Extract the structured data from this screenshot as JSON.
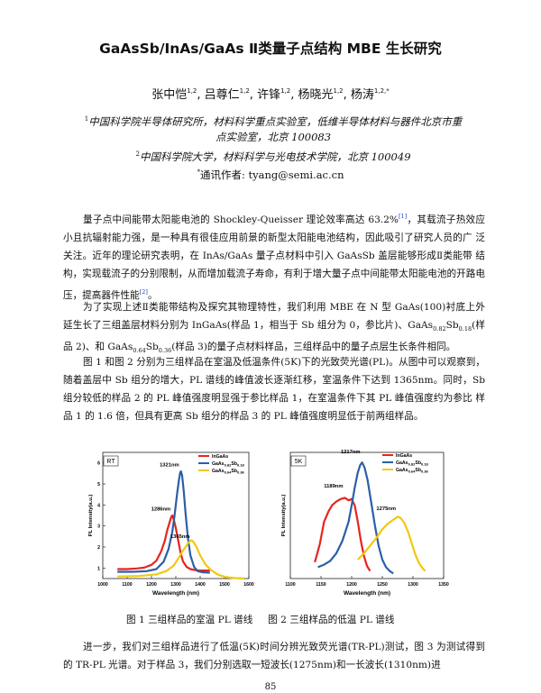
{
  "title": "GaAsSb/InAs/GaAs Ⅱ类量子点结构 MBE 生长研究",
  "authors": [
    {
      "name": "张中恺",
      "sup": "1,2"
    },
    {
      "name": "吕尊仁",
      "sup": "1,2"
    },
    {
      "name": "许锋",
      "sup": "1,2"
    },
    {
      "name": "杨晓光",
      "sup": "1,2"
    },
    {
      "name": "杨涛",
      "sup": "1,2,*"
    }
  ],
  "affiliation1": {
    "sup": "1",
    "line1": "中国科学院半导体研究所，材料科学重点实验室，低维半导体材料与器件北京市重",
    "line2": "点实验室，北京 100083"
  },
  "affiliation2": {
    "sup": "2",
    "text": "中国科学院大学，材料科学与光电技术学院，北京 100049"
  },
  "correspondence": {
    "sup": "*",
    "text": "通讯作者: tyang@semi.ac.cn"
  },
  "paragraph1": {
    "part1": "量子点中间能带太阳能电池的 Shockley-Queisser 理论效率高达 63.2%",
    "ref1": "[1]",
    "part2": "，其载流子热效应 小且抗辐射能力强，是一种具有很佳应用前景的新型太阳能电池结构，因此吸引了研究人员的广 泛关注。近年的理论研究表明，在 InAs/GaAs 量子点材料中引入 GaAsSb 盖层能够形成Ⅱ类能带 结构，实现载流子的分别限制，从而增加载流子寿命，有利于增大量子点中间能带太阳能电池的开路电压，提高器件性能",
    "ref2": "[2]",
    "part3": "。"
  },
  "paragraph2": {
    "part1": "为了实现上述Ⅱ类能带结构及探究其物理特性，我们利用 MBE 在 N 型 GaAs(100)衬底上外 延生长了三组盖层材料分别为 InGaAs(样品 1，相当于 Sb 组分为 0，参比片)、GaAs",
    "sub1": "0.82",
    "part2": "Sb",
    "sub2": "0.18",
    "part3": "(样品 2)、和 GaAs",
    "sub3": "0.64",
    "part4": "Sb",
    "sub4": "0.36",
    "part5": "(样品 3)的量子点材料样品，三组样品中的量子点层生长条件相同。"
  },
  "paragraph3": "图 1 和图 2 分别为三组样品在室温及低温条件(5K)下的光致荧光谱(PL)。从图中可以观察到，随着盖层中 Sb 组分的增大，PL 谱线的峰值波长逐渐红移，室温条件下达到 1365nm。同时，Sb 组分较低的样品 2 的 PL 峰值强度明显强于参比样品 1，在室温条件下其 PL 峰值强度约为参比 样品 1 的 1.6 倍，但具有更高 Sb 组分的样品 3 的 PL 峰值强度明显低于前两组样品。",
  "paragraph4": "进一步，我们对三组样品进行了低温(5K)时间分辨光致荧光谱(TR-PL)测试，图 3 为测试得到的 TR-PL 光谱。对于样品 3，我们分别选取一短波长(1275nm)和一长波长(1310nm)进",
  "captions": {
    "fig1": "图 1 三组样品的室温 PL 谱线",
    "fig2": "图 2 三组样品的低温 PL 谱线"
  },
  "page_number": "85",
  "colors": {
    "InGaAs": "#e8231f",
    "GaAs0.82Sb0.18": "#2a5fa8",
    "GaAs0.64Sb0.36": "#f2c80f"
  },
  "chart_data": [
    {
      "type": "line",
      "panel_label": "RT",
      "xlabel": "Wavelength (nm)",
      "ylabel": "PL Intensity(a.u.)",
      "xlim": [
        1000,
        1600
      ],
      "ylim": [
        0.5,
        6.5
      ],
      "xticks": [
        1000,
        1100,
        1200,
        1300,
        1400,
        1500,
        1600
      ],
      "yticks": [
        1,
        2,
        3,
        4,
        5,
        6
      ],
      "legend": [
        {
          "name": "InGaAs",
          "main": "InGaAs",
          "sub1": "",
          "mid": "",
          "sub2": ""
        },
        {
          "name": "GaAs0.82Sb0.18",
          "main": "GaAs",
          "sub1": "0.82",
          "mid": "Sb",
          "sub2": "0.18"
        },
        {
          "name": "GaAs0.64Sb0.36",
          "main": "GaAs",
          "sub1": "0.64",
          "mid": "Sb",
          "sub2": "0.36"
        }
      ],
      "annotations": [
        {
          "text": "1321nm",
          "x": 1321,
          "y": 5.7
        },
        {
          "text": "1286nm",
          "x": 1286,
          "y": 3.6
        },
        {
          "text": "1365nm",
          "x": 1365,
          "y": 2.3
        }
      ],
      "series": [
        {
          "name": "InGaAs",
          "x": [
            1060,
            1100,
            1140,
            1170,
            1200,
            1220,
            1240,
            1255,
            1265,
            1275,
            1282,
            1286,
            1292,
            1300,
            1310,
            1320,
            1330,
            1345,
            1360,
            1380,
            1400,
            1420,
            1440
          ],
          "y": [
            0.95,
            0.95,
            0.98,
            1.02,
            1.15,
            1.35,
            1.8,
            2.3,
            2.8,
            3.2,
            3.45,
            3.5,
            3.3,
            2.9,
            2.3,
            1.7,
            1.3,
            1.05,
            0.95,
            0.9,
            0.88,
            0.88,
            0.88
          ]
        },
        {
          "name": "GaAs0.82Sb0.18",
          "x": [
            1060,
            1120,
            1180,
            1220,
            1250,
            1270,
            1285,
            1295,
            1305,
            1313,
            1318,
            1321,
            1326,
            1333,
            1340,
            1350,
            1360,
            1375,
            1390,
            1410,
            1440
          ],
          "y": [
            0.82,
            0.82,
            0.85,
            0.95,
            1.3,
            1.9,
            2.7,
            3.5,
            4.5,
            5.2,
            5.55,
            5.6,
            5.4,
            4.6,
            3.6,
            2.4,
            1.6,
            1.05,
            0.85,
            0.8,
            0.78
          ]
        },
        {
          "name": "GaAs0.64Sb0.36",
          "x": [
            1060,
            1150,
            1220,
            1260,
            1290,
            1310,
            1325,
            1340,
            1352,
            1360,
            1365,
            1372,
            1385,
            1400,
            1420,
            1440,
            1470,
            1500,
            1540,
            1580
          ],
          "y": [
            0.6,
            0.62,
            0.7,
            0.85,
            1.1,
            1.45,
            1.75,
            2.0,
            2.2,
            2.3,
            2.32,
            2.25,
            2.0,
            1.6,
            1.2,
            0.95,
            0.7,
            0.58,
            0.52,
            0.5
          ]
        }
      ]
    },
    {
      "type": "line",
      "panel_label": "5K",
      "xlabel": "Wavelength (nm)",
      "ylabel": "PL Intensity(a.u.)",
      "xlim": [
        1100,
        1350
      ],
      "ylim": [
        0,
        1
      ],
      "xticks": [
        1100,
        1150,
        1200,
        1250,
        1300,
        1350
      ],
      "yticks": [],
      "legend": [
        {
          "name": "InGaAs",
          "main": "InGaAs",
          "sub1": "",
          "mid": "",
          "sub2": ""
        },
        {
          "name": "GaAs0.82Sb0.18",
          "main": "GaAs",
          "sub1": "0.82",
          "mid": "Sb",
          "sub2": "0.18"
        },
        {
          "name": "GaAs0.64Sb0.36",
          "main": "GaAs",
          "sub1": "0.64",
          "mid": "Sb",
          "sub2": "0.36"
        }
      ],
      "annotations": [
        {
          "text": "1217nm",
          "x": 1217,
          "y": 0.97
        },
        {
          "text": "1189nm",
          "x": 1189,
          "y": 0.7
        },
        {
          "text": "1275nm",
          "x": 1275,
          "y": 0.52
        }
      ],
      "series": [
        {
          "name": "InGaAs",
          "x": [
            1140,
            1148,
            1155,
            1162,
            1168,
            1175,
            1182,
            1189,
            1195,
            1200,
            1205,
            1210,
            1215,
            1220,
            1225,
            1230
          ],
          "y": [
            0.13,
            0.27,
            0.45,
            0.53,
            0.58,
            0.61,
            0.63,
            0.64,
            0.62,
            0.63,
            0.58,
            0.45,
            0.3,
            0.18,
            0.1,
            0.06
          ]
        },
        {
          "name": "GaAs0.82Sb0.18",
          "x": [
            1145,
            1155,
            1165,
            1175,
            1185,
            1195,
            1200,
            1205,
            1210,
            1214,
            1217,
            1221,
            1226,
            1232,
            1238,
            1244,
            1250,
            1256,
            1262,
            1268
          ],
          "y": [
            0.09,
            0.11,
            0.14,
            0.2,
            0.3,
            0.45,
            0.58,
            0.72,
            0.84,
            0.9,
            0.92,
            0.88,
            0.78,
            0.6,
            0.42,
            0.26,
            0.15,
            0.09,
            0.06,
            0.04
          ]
        },
        {
          "name": "GaAs0.64Sb0.36",
          "x": [
            1210,
            1220,
            1230,
            1240,
            1250,
            1258,
            1266,
            1272,
            1275,
            1280,
            1286,
            1292,
            1298,
            1304,
            1310,
            1316,
            1320
          ],
          "y": [
            0.15,
            0.2,
            0.26,
            0.32,
            0.39,
            0.43,
            0.46,
            0.48,
            0.49,
            0.48,
            0.44,
            0.37,
            0.28,
            0.19,
            0.12,
            0.08,
            0.06
          ]
        }
      ]
    }
  ]
}
